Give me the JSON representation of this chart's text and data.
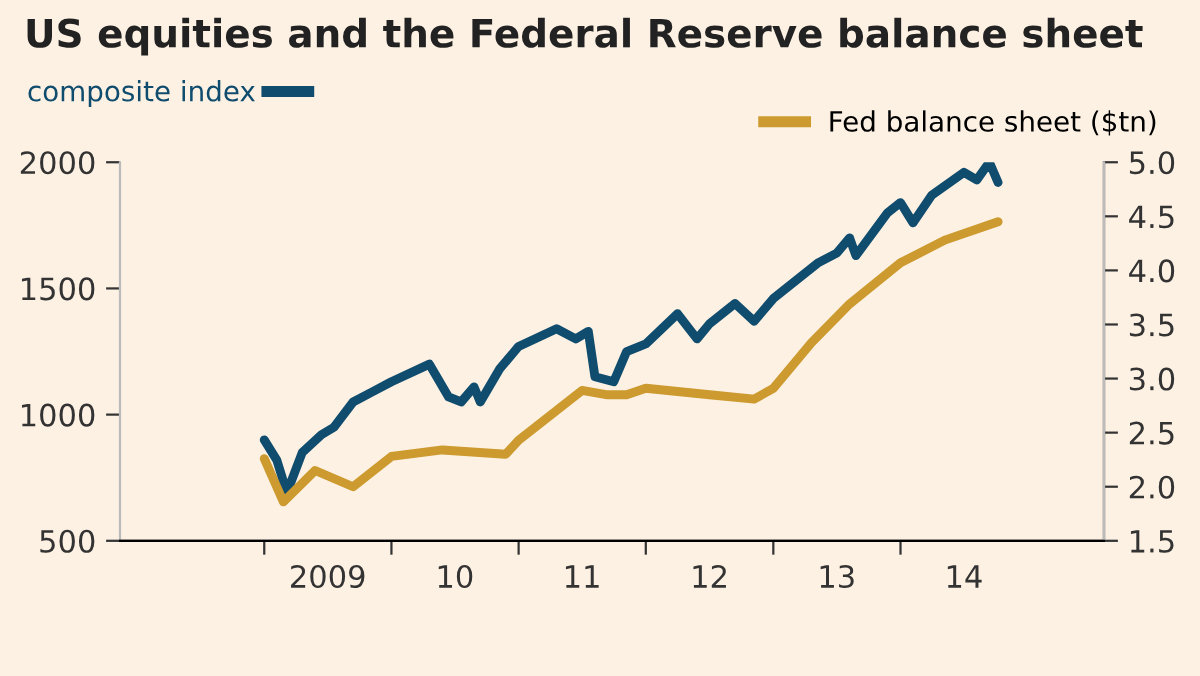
{
  "chart_data": {
    "type": "line",
    "title": "US equities and the Federal Reserve balance sheet",
    "xlim": [
      "2007-11-14",
      "2015-08-08"
    ],
    "xticks": [
      {
        "value": "2009-01-01",
        "label": null
      },
      {
        "value": "2009-07-02",
        "label": "2009"
      },
      {
        "value": "2010-01-01",
        "label": null
      },
      {
        "value": "2010-07-02",
        "label": "10"
      },
      {
        "value": "2011-01-01",
        "label": null
      },
      {
        "value": "2011-07-02",
        "label": "11"
      },
      {
        "value": "2012-01-01",
        "label": null
      },
      {
        "value": "2012-07-02",
        "label": "12"
      },
      {
        "value": "2013-01-01",
        "label": null
      },
      {
        "value": "2013-07-02",
        "label": "13"
      },
      {
        "value": "2014-01-01",
        "label": null
      },
      {
        "value": "2014-07-02",
        "label": "14"
      }
    ],
    "ylim": [
      500,
      2000
    ],
    "yticks": [
      500,
      1000,
      1500,
      2000
    ],
    "y2lim": [
      1.5,
      5.0
    ],
    "y2ticks": [
      {
        "value": 1.5,
        "label": "1.5"
      },
      {
        "value": 2.0,
        "label": "2.0"
      },
      {
        "value": 2.5,
        "label": "2.5"
      },
      {
        "value": 3.0,
        "label": "3.0"
      },
      {
        "value": 3.5,
        "label": "3.5"
      },
      {
        "value": 4.0,
        "label": "4.0"
      },
      {
        "value": 4.5,
        "label": "4.5"
      },
      {
        "value": 5.0,
        "label": "5.0"
      }
    ],
    "legend": "top",
    "grid": false,
    "series": [
      {
        "name": "composite index",
        "color": "#0f4c6e",
        "x": [
          "2009-01-01",
          "2009-02-06",
          "2009-03-07",
          "2009-04-20",
          "2009-06-14",
          "2009-07-20",
          "2009-09-13",
          "2009-11-07",
          "2010-01-01",
          "2010-04-20",
          "2010-06-14",
          "2010-07-20",
          "2010-08-26",
          "2010-09-13",
          "2010-11-07",
          "2011-01-01",
          "2011-04-20",
          "2011-06-14",
          "2011-07-20",
          "2011-08-08",
          "2011-10-01",
          "2011-11-07",
          "2012-01-01",
          "2012-04-01",
          "2012-05-27",
          "2012-07-02",
          "2012-09-13",
          "2012-11-07",
          "2013-01-01",
          "2013-05-08",
          "2013-07-02",
          "2013-08-08",
          "2013-08-26",
          "2013-11-25",
          "2014-01-01",
          "2014-02-06",
          "2014-04-01",
          "2014-07-02",
          "2014-08-08",
          "2014-09-13",
          "2014-10-08"
        ],
        "values": [
          900,
          820,
          690,
          850,
          920,
          950,
          1050,
          1090,
          1130,
          1200,
          1070,
          1050,
          1110,
          1050,
          1180,
          1270,
          1340,
          1300,
          1330,
          1150,
          1130,
          1250,
          1280,
          1400,
          1300,
          1360,
          1440,
          1370,
          1460,
          1600,
          1640,
          1700,
          1630,
          1800,
          1840,
          1760,
          1870,
          1960,
          1930,
          2000,
          1920
        ]
      },
      {
        "name": "Fed balance sheet ($tn)",
        "color": "#cc9a2e",
        "axis": "y2",
        "x": [
          "2009-01-01",
          "2009-02-25",
          "2009-05-27",
          "2009-09-13",
          "2010-01-01",
          "2010-05-27",
          "2010-11-25",
          "2011-01-01",
          "2011-07-02",
          "2011-09-13",
          "2011-11-07",
          "2012-01-01",
          "2012-07-02",
          "2012-11-07",
          "2013-01-01",
          "2013-04-20",
          "2013-08-08",
          "2014-01-01",
          "2014-05-08",
          "2014-10-08"
        ],
        "values": [
          2.26,
          1.86,
          2.15,
          2.0,
          2.28,
          2.34,
          2.3,
          2.43,
          2.89,
          2.85,
          2.85,
          2.91,
          2.85,
          2.81,
          2.91,
          3.33,
          3.69,
          4.07,
          4.28,
          4.45
        ]
      }
    ]
  }
}
